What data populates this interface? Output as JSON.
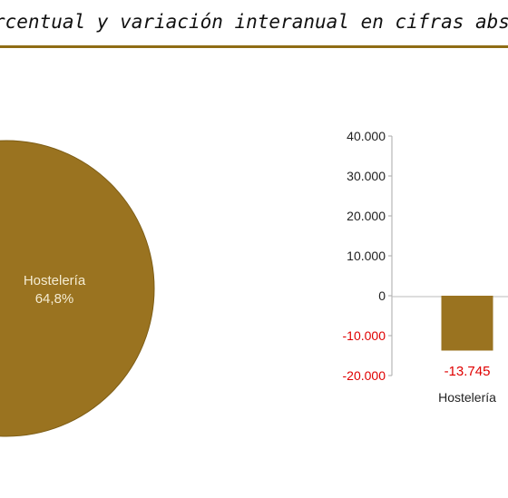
{
  "header": {
    "title": "rcentual y variación interanual en cifras absolu"
  },
  "colors": {
    "accent": "#8f6c14",
    "bar": "#9a7320",
    "negative": "#e00000",
    "pie_text": "#f5ecd2"
  },
  "chart_data": [
    {
      "type": "pie",
      "title": "",
      "slices": [
        {
          "label": "Hostelería",
          "value_label": "64,8%",
          "value": 64.8
        }
      ]
    },
    {
      "type": "bar",
      "title": "",
      "xlabel": "",
      "ylabel": "",
      "categories": [
        "Hostelería"
      ],
      "values": [
        -13745
      ],
      "value_labels": [
        "-13.745"
      ],
      "ylim": [
        -20000,
        40000
      ],
      "ticks": [
        {
          "value": 40000,
          "label": "40.000",
          "negative": false
        },
        {
          "value": 30000,
          "label": "30.000",
          "negative": false
        },
        {
          "value": 20000,
          "label": "20.000",
          "negative": false
        },
        {
          "value": 10000,
          "label": "10.000",
          "negative": false
        },
        {
          "value": 0,
          "label": "0",
          "negative": false
        },
        {
          "value": -10000,
          "label": "-10.000",
          "negative": true
        },
        {
          "value": -20000,
          "label": "-20.000",
          "negative": true
        }
      ],
      "grid": false,
      "legend": "none"
    }
  ]
}
